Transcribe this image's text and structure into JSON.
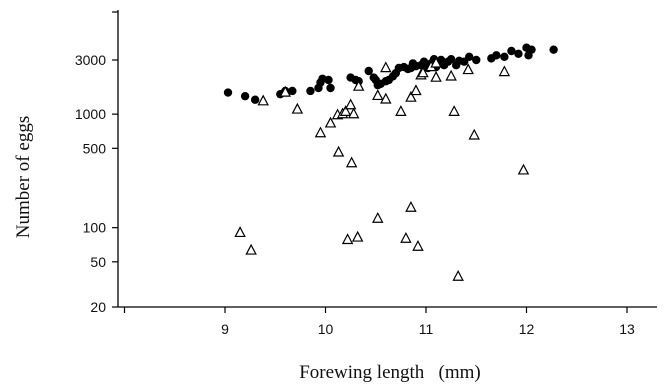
{
  "chart_data": {
    "type": "scatter",
    "title": "",
    "xlabel": "Forewing length   (mm)",
    "ylabel": "Number of eggs",
    "xlim": [
      8,
      13.3
    ],
    "ylim": [
      20,
      6000
    ],
    "yscale": "log",
    "grid": false,
    "x_ticks": [
      9,
      10,
      11,
      12,
      13
    ],
    "x_tick_labels": [
      "9",
      "10",
      "11",
      "12",
      "13"
    ],
    "y_ticks": [
      20,
      50,
      100,
      500,
      1000,
      3000
    ],
    "y_tick_labels": [
      "20",
      "50",
      "100",
      "500",
      "1000",
      "3000"
    ],
    "colors": {
      "axis": "#000000",
      "marker": "#000000",
      "background": "#ffffff"
    },
    "series": [
      {
        "marker": "filled-circle",
        "points": [
          [
            9.03,
            1550
          ],
          [
            9.2,
            1440
          ],
          [
            9.3,
            1340
          ],
          [
            9.55,
            1500
          ],
          [
            9.6,
            1600
          ],
          [
            9.67,
            1600
          ],
          [
            9.85,
            1600
          ],
          [
            9.93,
            1700
          ],
          [
            9.95,
            1900
          ],
          [
            9.97,
            2050
          ],
          [
            10.03,
            2000
          ],
          [
            10.05,
            1700
          ],
          [
            10.25,
            2100
          ],
          [
            10.3,
            2000
          ],
          [
            10.33,
            1950
          ],
          [
            10.43,
            2400
          ],
          [
            10.48,
            2100
          ],
          [
            10.5,
            2000
          ],
          [
            10.52,
            1800
          ],
          [
            10.55,
            1850
          ],
          [
            10.6,
            1950
          ],
          [
            10.63,
            2000
          ],
          [
            10.67,
            2150
          ],
          [
            10.7,
            2300
          ],
          [
            10.73,
            2550
          ],
          [
            10.78,
            2600
          ],
          [
            10.82,
            2500
          ],
          [
            10.85,
            2550
          ],
          [
            10.87,
            2800
          ],
          [
            10.9,
            2650
          ],
          [
            10.95,
            2700
          ],
          [
            10.98,
            2900
          ],
          [
            11.02,
            2550
          ],
          [
            11.05,
            2800
          ],
          [
            11.08,
            3050
          ],
          [
            11.1,
            2600
          ],
          [
            11.15,
            3000
          ],
          [
            11.18,
            2700
          ],
          [
            11.22,
            2900
          ],
          [
            11.25,
            3050
          ],
          [
            11.3,
            2700
          ],
          [
            11.33,
            2950
          ],
          [
            11.38,
            2900
          ],
          [
            11.43,
            3200
          ],
          [
            11.5,
            3000
          ],
          [
            11.65,
            3100
          ],
          [
            11.7,
            3300
          ],
          [
            11.78,
            3200
          ],
          [
            11.85,
            3600
          ],
          [
            11.92,
            3400
          ],
          [
            12.0,
            3850
          ],
          [
            12.02,
            3300
          ],
          [
            12.05,
            3700
          ],
          [
            12.27,
            3700
          ]
        ]
      },
      {
        "marker": "open-triangle",
        "points": [
          [
            9.15,
            90
          ],
          [
            9.26,
            63
          ],
          [
            9.38,
            1300
          ],
          [
            9.6,
            1550
          ],
          [
            9.72,
            1100
          ],
          [
            9.95,
            680
          ],
          [
            10.05,
            830
          ],
          [
            10.12,
            980
          ],
          [
            10.13,
            460
          ],
          [
            10.17,
            1000
          ],
          [
            10.2,
            1050
          ],
          [
            10.22,
            78
          ],
          [
            10.25,
            1200
          ],
          [
            10.26,
            370
          ],
          [
            10.28,
            1000
          ],
          [
            10.32,
            82
          ],
          [
            10.33,
            1750
          ],
          [
            10.52,
            120
          ],
          [
            10.52,
            1450
          ],
          [
            10.6,
            1350
          ],
          [
            10.6,
            2550
          ],
          [
            10.75,
            1050
          ],
          [
            10.8,
            80
          ],
          [
            10.85,
            1400
          ],
          [
            10.85,
            150
          ],
          [
            10.9,
            1600
          ],
          [
            10.92,
            68
          ],
          [
            10.95,
            2200
          ],
          [
            10.97,
            2300
          ],
          [
            11.05,
            2600
          ],
          [
            11.1,
            2800
          ],
          [
            11.1,
            2100
          ],
          [
            11.25,
            2150
          ],
          [
            11.28,
            1050
          ],
          [
            11.32,
            37
          ],
          [
            11.42,
            2450
          ],
          [
            11.48,
            650
          ],
          [
            11.78,
            2350
          ],
          [
            11.97,
            320
          ]
        ]
      }
    ]
  }
}
